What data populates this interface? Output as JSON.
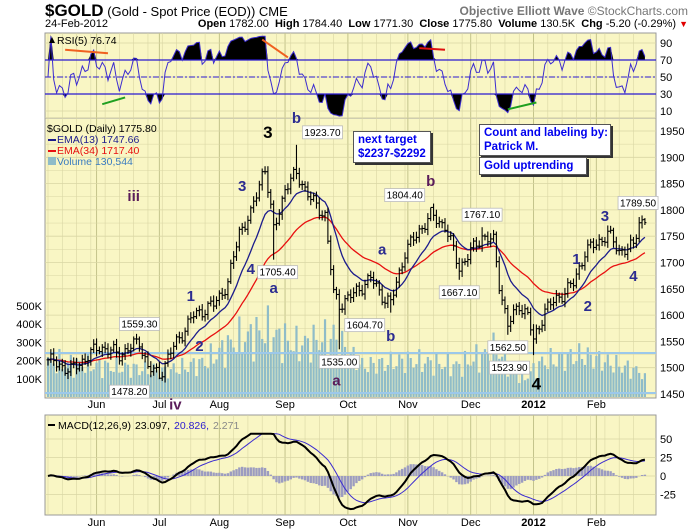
{
  "header": {
    "symbol": "$GOLD",
    "description": "(Gold - Spot Price (EOD))",
    "exchange": "CME",
    "source": "Objective Elliott Wave",
    "copyright": "©StockCharts.com",
    "date": "24-Feb-2012",
    "open_label": "Open",
    "open": "1782.00",
    "high_label": "High",
    "high": "1784.40",
    "low_label": "Low",
    "low": "1771.30",
    "close_label": "Close",
    "close": "1775.80",
    "volume_label": "Volume",
    "volume": "130.5K",
    "chg_label": "Chg",
    "chg": "-5.20 (-0.29%)",
    "chg_direction_icon": "down-triangle-icon"
  },
  "text_boxes": {
    "next_target": [
      "next target",
      "$2237-$2292"
    ],
    "credit": [
      "Count and labeling by:",
      "Patrick M."
    ],
    "trend": "Gold uptrending"
  },
  "colors": {
    "panel_bg": "#f9f6c4",
    "grid": "#d9d6a4",
    "price_bars": "#000000",
    "ema13": "#1c1c8c",
    "ema34": "#e81010",
    "volume": "#8fbcc8",
    "rsi": "#3c2cd0",
    "macd": "#000000",
    "signal": "#3c2cd0",
    "histogram": "#9c9cc0",
    "wave_navy": "#2c2c90",
    "wave_purple": "#5a1c5a",
    "wave_black": "#000000",
    "support_line": "#9cc8ea"
  },
  "months": [
    {
      "label": "Jun",
      "date": "2011-06-01"
    },
    {
      "label": "Jul",
      "date": "2011-07-01"
    },
    {
      "label": "Aug",
      "date": "2011-08-01"
    },
    {
      "label": "Sep",
      "date": "2011-09-01"
    },
    {
      "label": "Oct",
      "date": "2011-10-03"
    },
    {
      "label": "Nov",
      "date": "2011-11-01"
    },
    {
      "label": "Dec",
      "date": "2011-12-01"
    },
    {
      "label": "2012",
      "date": "2012-01-02"
    },
    {
      "label": "Feb",
      "date": "2012-02-01"
    }
  ],
  "chart_data": [
    {
      "type": "line",
      "panel": "price",
      "subtype": "ohlc-bars",
      "legend": [
        "$GOLD (Daily) 1775.80",
        "EMA(13) 1747.66",
        "EMA(34) 1717.40",
        "Volume 130,544"
      ],
      "y_ticks": [
        1950,
        1900,
        1850,
        1800,
        1750,
        1700,
        1650,
        1600,
        1550,
        1500,
        1450
      ],
      "ylim": [
        1440,
        1985
      ],
      "volume_ticks": [
        "100K",
        "200K",
        "300K",
        "400K",
        "500K"
      ],
      "volume_tick_values": [
        100000,
        200000,
        300000,
        400000,
        500000
      ],
      "ema_periods": [
        13,
        34
      ],
      "support_lines": [
        1528,
        1452
      ],
      "close_path": [
        [
          "2011-05-09",
          1515
        ],
        [
          "2011-05-19",
          1495
        ],
        [
          "2011-06-02",
          1540
        ],
        [
          "2011-06-13",
          1525
        ],
        [
          "2011-06-22",
          1550
        ],
        [
          "2011-06-27",
          1500
        ],
        [
          "2011-07-01",
          1486
        ],
        [
          "2011-07-08",
          1540
        ],
        [
          "2011-07-19",
          1600
        ],
        [
          "2011-07-28",
          1620
        ],
        [
          "2011-08-04",
          1660
        ],
        [
          "2011-08-10",
          1760
        ],
        [
          "2011-08-16",
          1790
        ],
        [
          "2011-08-22",
          1870
        ],
        [
          "2011-08-23",
          1880
        ],
        [
          "2011-08-26",
          1760
        ],
        [
          "2011-09-01",
          1840
        ],
        [
          "2011-09-07",
          1870
        ],
        [
          "2011-09-14",
          1820
        ],
        [
          "2011-09-21",
          1790
        ],
        [
          "2011-09-26",
          1640
        ],
        [
          "2011-09-28",
          1620
        ],
        [
          "2011-10-05",
          1640
        ],
        [
          "2011-10-13",
          1670
        ],
        [
          "2011-10-20",
          1630
        ],
        [
          "2011-10-24",
          1622
        ],
        [
          "2011-10-31",
          1720
        ],
        [
          "2011-11-07",
          1760
        ],
        [
          "2011-11-11",
          1790
        ],
        [
          "2011-11-18",
          1770
        ],
        [
          "2011-11-25",
          1690
        ],
        [
          "2011-12-01",
          1720
        ],
        [
          "2011-12-07",
          1750
        ],
        [
          "2011-12-13",
          1740
        ],
        [
          "2011-12-15",
          1660
        ],
        [
          "2011-12-20",
          1580
        ],
        [
          "2011-12-26",
          1620
        ],
        [
          "2011-12-29",
          1600
        ],
        [
          "2012-01-02",
          1550
        ],
        [
          "2012-01-06",
          1610
        ],
        [
          "2012-01-13",
          1635
        ],
        [
          "2012-01-20",
          1660
        ],
        [
          "2012-01-26",
          1720
        ],
        [
          "2012-02-02",
          1740
        ],
        [
          "2012-02-07",
          1755
        ],
        [
          "2012-02-13",
          1722
        ],
        [
          "2012-02-20",
          1730
        ],
        [
          "2012-02-22",
          1780
        ],
        [
          "2012-02-24",
          1775.8
        ]
      ],
      "last_bar": {
        "date": "2012-02-24",
        "open": 1782.0,
        "high": 1784.4,
        "low": 1771.3,
        "close": 1775.8
      },
      "volume_path": [
        [
          "2011-05-09",
          190000
        ],
        [
          "2011-06-15",
          160000
        ],
        [
          "2011-07-05",
          140000
        ],
        [
          "2011-07-25",
          190000
        ],
        [
          "2011-08-08",
          300000
        ],
        [
          "2011-08-23",
          360000
        ],
        [
          "2011-09-07",
          280000
        ],
        [
          "2011-09-26",
          330000
        ],
        [
          "2011-10-10",
          170000
        ],
        [
          "2011-11-01",
          200000
        ],
        [
          "2011-11-25",
          170000
        ],
        [
          "2011-12-14",
          260000
        ],
        [
          "2011-12-27",
          90000
        ],
        [
          "2012-01-05",
          190000
        ],
        [
          "2012-01-25",
          230000
        ],
        [
          "2012-02-24",
          130544
        ]
      ],
      "price_labels": [
        {
          "text": "1559.30",
          "date": "2011-06-22",
          "value": 1559.3,
          "pos": "above"
        },
        {
          "text": "1478.20",
          "date": "2011-07-01",
          "value": 1478.2,
          "pos": "below"
        },
        {
          "text": "1705.40",
          "date": "2011-08-26",
          "value": 1705.4,
          "pos": "below"
        },
        {
          "text": "1923.70",
          "date": "2011-09-07",
          "value": 1923.7,
          "pos": "above"
        },
        {
          "text": "1535.00",
          "date": "2011-09-28",
          "value": 1535.0,
          "pos": "below"
        },
        {
          "text": "1604.70",
          "date": "2011-10-24",
          "value": 1604.7,
          "pos": "below"
        },
        {
          "text": "1804.40",
          "date": "2011-11-11",
          "value": 1804.4,
          "pos": "above"
        },
        {
          "text": "1667.10",
          "date": "2011-11-25",
          "value": 1667.1,
          "pos": "below"
        },
        {
          "text": "1767.10",
          "date": "2011-12-07",
          "value": 1767.1,
          "pos": "above"
        },
        {
          "text": "1562.50",
          "date": "2011-12-20",
          "value": 1562.5,
          "pos": "below"
        },
        {
          "text": "1523.90",
          "date": "2012-01-02",
          "value": 1523.9,
          "pos": "below"
        },
        {
          "text": "1789.50",
          "date": "2012-02-23",
          "value": 1789.5,
          "pos": "above"
        }
      ],
      "wave_labels": [
        {
          "text": "iii",
          "date": "2011-06-20",
          "price": 1828,
          "style": "purple"
        },
        {
          "text": "iv",
          "date": "2011-07-01",
          "price": 1432,
          "style": "purple"
        },
        {
          "text": "1",
          "date": "2011-07-18",
          "price": 1638,
          "style": "navy"
        },
        {
          "text": "2",
          "date": "2011-07-21",
          "price": 1543,
          "style": "navy"
        },
        {
          "text": "3",
          "date": "2011-08-11",
          "price": 1847,
          "style": "navy"
        },
        {
          "text": "4",
          "date": "2011-08-16",
          "price": 1690,
          "style": "navy"
        },
        {
          "text": "3",
          "date": "2011-08-24",
          "price": 1948,
          "style": "black"
        },
        {
          "text": "a",
          "date": "2011-08-26",
          "price": 1653,
          "style": "navy"
        },
        {
          "text": "b",
          "date": "2011-09-07",
          "price": 1977,
          "style": "navy"
        },
        {
          "text": "a",
          "date": "2011-09-27",
          "price": 1478,
          "style": "purple"
        },
        {
          "text": "a",
          "date": "2011-10-19",
          "price": 1727,
          "style": "navy"
        },
        {
          "text": "b",
          "date": "2011-10-24",
          "price": 1562,
          "style": "navy"
        },
        {
          "text": "b",
          "date": "2011-11-11",
          "price": 1857,
          "style": "purple"
        },
        {
          "text": "4",
          "date": "2012-01-03",
          "price": 1470,
          "style": "black"
        },
        {
          "text": "1",
          "date": "2012-01-23",
          "price": 1709,
          "style": "navy"
        },
        {
          "text": "2",
          "date": "2012-01-27",
          "price": 1619,
          "style": "navy"
        },
        {
          "text": "3",
          "date": "2012-02-06",
          "price": 1790,
          "style": "navy"
        },
        {
          "text": "4",
          "date": "2012-02-20",
          "price": 1676,
          "style": "navy"
        }
      ]
    },
    {
      "type": "line",
      "panel": "rsi",
      "legend": "RSI(5) 76.74",
      "period": 5,
      "y_ticks": [
        90,
        70,
        50,
        30,
        10
      ],
      "ylim": [
        0,
        100
      ],
      "overbought": 70,
      "midline": 50,
      "oversold": 30,
      "trendlines": [
        {
          "from": [
            "2011-05-17",
            82
          ],
          "to": [
            "2011-06-07",
            78
          ],
          "color": "#f06020"
        },
        {
          "from": [
            "2011-06-03",
            18
          ],
          "to": [
            "2011-06-15",
            26
          ],
          "color": "#20a020"
        },
        {
          "from": [
            "2011-08-22",
            94
          ],
          "to": [
            "2011-09-02",
            73
          ],
          "color": "#f06020"
        },
        {
          "from": [
            "2011-11-07",
            84
          ],
          "to": [
            "2011-11-18",
            82
          ],
          "color": "#e01010"
        },
        {
          "from": [
            "2011-12-20",
            12
          ],
          "to": [
            "2012-01-03",
            20
          ],
          "color": "#20a020"
        }
      ]
    },
    {
      "type": "line",
      "panel": "macd",
      "legend": [
        "MACD(12,26,9)",
        "23.097,",
        "20.826,",
        "2.271"
      ],
      "params": [
        12,
        26,
        9
      ],
      "y_ticks": [
        50,
        25,
        0,
        -25
      ],
      "ylim": [
        -52,
        82
      ]
    }
  ]
}
